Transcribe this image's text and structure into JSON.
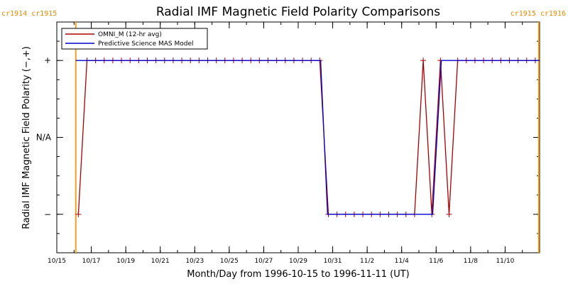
{
  "chart_data": {
    "type": "line",
    "title": "Radial IMF Magnetic Field Polarity Comparisons",
    "xlabel": "Month/Day from 1996-10-15 to 1996-11-11 (UT)",
    "ylabel": "Radial IMF Magnetic Field Polarity (−,+)",
    "x_start": "1996-10-15",
    "x_end": "1996-11-11",
    "xlim": [
      0,
      28
    ],
    "ylim": [
      -1.5,
      1.5
    ],
    "x_tick_labels": [
      "10/15",
      "10/17",
      "10/19",
      "10/21",
      "10/23",
      "10/25",
      "10/27",
      "10/29",
      "10/31",
      "11/2",
      "11/4",
      "11/6",
      "11/8",
      "11/10"
    ],
    "y_tick_labels": [
      {
        "value": 1,
        "label": "+"
      },
      {
        "value": 0,
        "label": "N/A"
      },
      {
        "value": -1,
        "label": "−"
      }
    ],
    "carrington_markers": [
      {
        "x": 1.1,
        "label": "cr1914 cr1915",
        "anchor": "left"
      },
      {
        "x": 27.95,
        "label": "cr1915 cr1916",
        "anchor": "right"
      }
    ],
    "legend_position": "top-left",
    "series": [
      {
        "name": "OMNI_M (12-hr avg)",
        "color": "#aa0000",
        "marker": "plus",
        "points": [
          [
            1.25,
            -1
          ],
          [
            1.75,
            1
          ],
          [
            2.25,
            1
          ],
          [
            2.75,
            1
          ],
          [
            3.25,
            1
          ],
          [
            3.75,
            1
          ],
          [
            4.25,
            1
          ],
          [
            4.75,
            1
          ],
          [
            5.25,
            1
          ],
          [
            5.75,
            1
          ],
          [
            6.25,
            1
          ],
          [
            6.75,
            1
          ],
          [
            7.25,
            1
          ],
          [
            7.75,
            1
          ],
          [
            8.25,
            1
          ],
          [
            8.75,
            1
          ],
          [
            9.25,
            1
          ],
          [
            9.75,
            1
          ],
          [
            10.25,
            1
          ],
          [
            10.75,
            1
          ],
          [
            11.25,
            1
          ],
          [
            11.75,
            1
          ],
          [
            12.25,
            1
          ],
          [
            12.75,
            1
          ],
          [
            13.25,
            1
          ],
          [
            13.75,
            1
          ],
          [
            14.25,
            1
          ],
          [
            14.75,
            1
          ],
          [
            15.25,
            1
          ],
          [
            15.75,
            -1
          ],
          [
            16.25,
            -1
          ],
          [
            16.75,
            -1
          ],
          [
            17.25,
            -1
          ],
          [
            17.75,
            -1
          ],
          [
            18.25,
            -1
          ],
          [
            18.75,
            -1
          ],
          [
            19.25,
            -1
          ],
          [
            19.75,
            -1
          ],
          [
            20.25,
            -1
          ],
          [
            20.75,
            -1
          ],
          [
            21.25,
            1
          ],
          [
            21.75,
            -1
          ],
          [
            22.25,
            1
          ],
          [
            22.75,
            -1
          ],
          [
            23.25,
            1
          ],
          [
            23.75,
            1
          ],
          [
            24.25,
            1
          ],
          [
            24.75,
            1
          ],
          [
            25.25,
            1
          ],
          [
            25.75,
            1
          ],
          [
            26.25,
            1
          ],
          [
            26.75,
            1
          ],
          [
            27.25,
            1
          ],
          [
            27.75,
            1
          ]
        ]
      },
      {
        "name": "Predictive Science MAS Model",
        "color": "#0000cc",
        "marker": "none",
        "points": [
          [
            1.1,
            1
          ],
          [
            15.3,
            1
          ],
          [
            15.7,
            -1
          ],
          [
            21.8,
            -1
          ],
          [
            22.3,
            1
          ],
          [
            28,
            1
          ]
        ]
      }
    ]
  }
}
